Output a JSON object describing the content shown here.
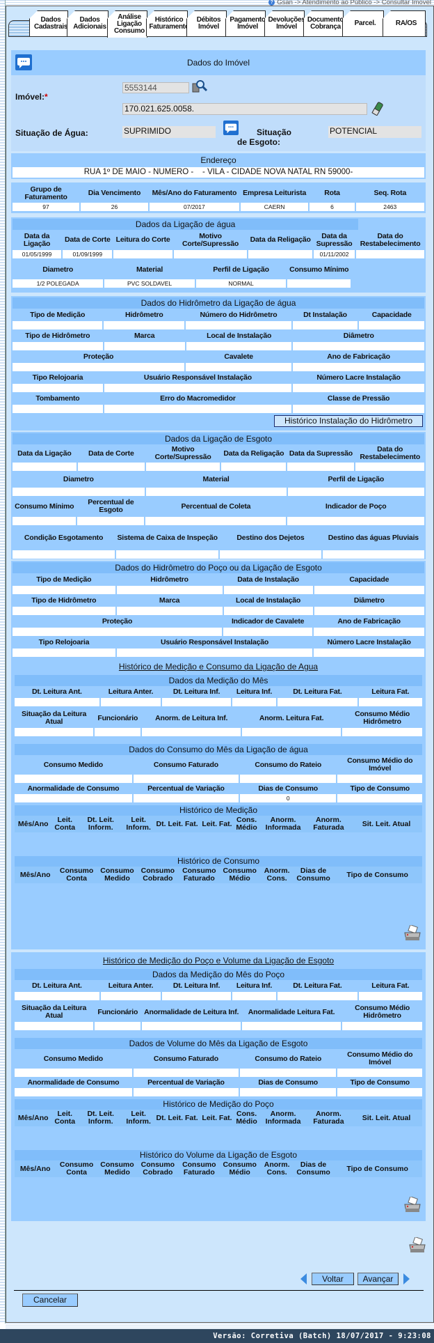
{
  "breadcrumb": "Gsan -> Atendimento ao Público -> Consultar Imovel",
  "tabs": [
    "Dados Cadastrais",
    "Dados Adicionais",
    "Análise Ligação Consumo",
    "Histórico Faturamento",
    "Débitos Imóvel",
    "Pagamento Imóvel",
    "Devoluções Imóvel",
    "Documento Cobrança",
    "Parcel.",
    "RA/OS"
  ],
  "active_tab": "Análise Ligação Consumo",
  "imovel": {
    "title": "Dados do Imóvel",
    "label": "Imóvel:",
    "required": "*",
    "matricula": "5553144",
    "inscricao": "170.021.625.0058.",
    "sit_agua_label": "Situação de Água:",
    "sit_agua": "SUPRIMIDO",
    "sit_esgoto_label": "Situação de Esgoto:",
    "sit_esgoto": "POTENCIAL"
  },
  "endereco": {
    "title": "Endereço",
    "value": "RUA 1º DE MAIO - NUMERO -    - VILA - CIDADE NOVA NATAL RN 59000-"
  },
  "billing": {
    "rows": [
      {
        "labels": [
          "Grupo de Faturamento",
          "Dia Vencimento",
          "Mês/Ano do Faturamento",
          "Empresa Leiturista",
          "Rota",
          "Seq. Rota"
        ],
        "values": [
          "97",
          "26",
          "07/2017",
          "CAERN",
          "6",
          "2463"
        ]
      }
    ]
  },
  "agua": {
    "title": "Dados da Ligação de água",
    "rows": [
      {
        "labels": [
          "Data da Ligação",
          "Data de Corte",
          "Leitura do Corte",
          "Motivo Corte/Supressão",
          "Data da Religação",
          "Data da Supressão",
          "Data do Restabelecimento"
        ],
        "values": [
          "01/05/1999",
          "01/09/1999",
          "",
          "",
          "",
          "01/11/2002",
          ""
        ]
      },
      {
        "labels": [
          "Diametro",
          "Material",
          "Perfil de Ligação",
          "Consumo Mínimo"
        ],
        "values": [
          "1/2 POLEGADA",
          "PVC SOLDAVEL",
          "NORMAL",
          ""
        ]
      }
    ]
  },
  "hidro": {
    "title": "Dados do Hidrômetro da Ligação de água",
    "button": "Histórico Instalação do Hidrômetro",
    "rows": [
      {
        "labels": [
          "Tipo de Medição",
          "Hidrômetro",
          "Número do Hidrômetro",
          "Dt Instalação",
          "Capacidade"
        ],
        "values": [
          "",
          "",
          "",
          "",
          ""
        ]
      },
      {
        "labels": [
          "Tipo de Hidrômetro",
          "Marca",
          "Local de Instalação",
          "Diâmetro"
        ],
        "values": [
          "",
          "",
          "",
          ""
        ]
      },
      {
        "labels": [
          "Proteção",
          "Cavalete",
          "Ano de Fabricação"
        ],
        "values": [
          "",
          "",
          ""
        ]
      },
      {
        "labels": [
          "Tipo Relojoaria",
          "Usuário Responsável Instalação",
          "Número Lacre Instalação"
        ],
        "values": [
          "",
          "",
          ""
        ]
      },
      {
        "labels": [
          "Tombamento",
          "Erro do Macromedidor",
          "Classe de Pressão"
        ],
        "values": [
          "",
          "",
          ""
        ]
      }
    ]
  },
  "esgoto": {
    "title": "Dados da Ligação de Esgoto",
    "rows": [
      {
        "labels": [
          "Data da Ligação",
          "Data de Corte",
          "Motivo Corte/Supressão",
          "Data da Religação",
          "Data da Supressão",
          "Data do Restabelecimento"
        ],
        "values": [
          "",
          "",
          "",
          "",
          "",
          ""
        ]
      },
      {
        "labels": [
          "Diametro",
          "Material",
          "Perfil de Ligação"
        ],
        "values": [
          "",
          "",
          ""
        ]
      },
      {
        "labels": [
          "Consumo Mínimo",
          "Percentual de Esgoto",
          "Percentual de Coleta",
          "Indicador de Poço"
        ],
        "values": [
          "",
          "",
          "",
          ""
        ]
      },
      {
        "labels": [
          "Condição Esgotamento",
          "Sistema de Caixa de Inspeção",
          "Destino dos Dejetos",
          "Destino das águas Pluviais"
        ],
        "values": [
          "",
          "",
          "",
          ""
        ]
      }
    ]
  },
  "poco": {
    "title": "Dados do Hidrômetro do Poço ou da Ligação de Esgoto",
    "rows": [
      {
        "labels": [
          "Tipo de Medição",
          "Hidrômetro",
          "Data de Instalação",
          "Capacidade"
        ],
        "values": [
          "",
          "",
          "",
          ""
        ]
      },
      {
        "labels": [
          "Tipo de Hidrômetro",
          "Marca",
          "Local de Instalação",
          "Diâmetro"
        ],
        "values": [
          "",
          "",
          "",
          ""
        ]
      },
      {
        "labels": [
          "Proteção",
          "Indicador de Cavalete",
          "Ano de Fabricação"
        ],
        "values": [
          "",
          "",
          ""
        ]
      },
      {
        "labels": [
          "Tipo Relojoaria",
          "Usuário Responsável Instalação",
          "Número Lacre Instalação"
        ],
        "values": [
          "",
          "",
          ""
        ]
      }
    ]
  },
  "hist_agua": {
    "title": "Histórico de Medição e Consumo da Ligação de Agua",
    "medicao": {
      "title": "Dados da Medição do Mês",
      "rows": [
        {
          "labels": [
            "Dt. Leitura Ant.",
            "Leitura Anter.",
            "Dt. Leitura Inf.",
            "Leitura Inf.",
            "Dt. Leitura Fat.",
            "Leitura Fat."
          ],
          "values": [
            "",
            "",
            "",
            "",
            "",
            ""
          ]
        },
        {
          "labels": [
            "Situação da Leitura Atual",
            "Funcionário",
            "Anorm. de Leitura Inf.",
            "Anorm. Leitura Fat.",
            "Consumo Médio Hidrômetro"
          ],
          "values": [
            "",
            "",
            "",
            "",
            ""
          ]
        }
      ]
    },
    "consumo": {
      "title": "Dados do Consumo do Mês da Ligação de água",
      "rows": [
        {
          "labels": [
            "Consumo Medido",
            "Consumo Faturado",
            "Consumo do Rateio",
            "Consumo Médio do Imóvel"
          ],
          "values": [
            "",
            "",
            "",
            ""
          ]
        },
        {
          "labels": [
            "Anormalidade de Consumo",
            "Percentual de Variação",
            "Dias de Consumo",
            "Tipo de Consumo"
          ],
          "values": [
            "",
            "",
            "0",
            ""
          ]
        }
      ]
    },
    "hist_medicao": {
      "title": "Histórico de Medição",
      "columns": [
        "Mês/Ano",
        "Leit. Conta",
        "Dt. Leit. Inform.",
        "Leit. Inform.",
        "Dt. Leit. Fat.",
        "Leit. Fat.",
        "Cons. Médio",
        "Anorm. Informada",
        "Anorm. Faturada",
        "Sit. Leit. Atual"
      ]
    },
    "hist_consumo": {
      "title": "Histórico de Consumo",
      "columns": [
        "Mês/Ano",
        "Consumo Conta",
        "Consumo Medido",
        "Consumo Cobrado",
        "Consumo Faturado",
        "Consumo Médio",
        "Anorm. Cons.",
        "Dias de Consumo",
        "Tipo de Consumo"
      ]
    }
  },
  "hist_poco": {
    "title": "Histórico de Medição do Poço e Volume da Ligação de Esgoto",
    "medicao": {
      "title": "Dados da Medição do Mês do Poço",
      "rows": [
        {
          "labels": [
            "Dt. Leitura Ant.",
            "Leitura Anter.",
            "Dt. Leitura Inf.",
            "Leitura Inf.",
            "Dt. Leitura Fat.",
            "Leitura Fat."
          ],
          "values": [
            "",
            "",
            "",
            "",
            "",
            ""
          ]
        },
        {
          "labels": [
            "Situação da Leitura Atual",
            "Funcionário",
            "Anormalidade de Leitura Inf.",
            "Anormalidade Leitura Fat.",
            "Consumo Médio Hidrômetro"
          ],
          "values": [
            "",
            "",
            "",
            "",
            ""
          ]
        }
      ]
    },
    "consumo": {
      "title": "Dados de Volume do Mês da Ligação de Esgoto",
      "rows": [
        {
          "labels": [
            "Consumo Medido",
            "Consumo Faturado",
            "Consumo do Rateio",
            "Consumo Médio do Imóvel"
          ],
          "values": [
            "",
            "",
            "",
            ""
          ]
        },
        {
          "labels": [
            "Anormalidade de Consumo",
            "Percentual de Variação",
            "Dias de Consumo",
            "Tipo de Consumo"
          ],
          "values": [
            "",
            "",
            "",
            ""
          ]
        }
      ]
    },
    "hist_medicao": {
      "title": "Histórico de Medição do Poço",
      "columns": [
        "Mês/Ano",
        "Leit. Conta",
        "Dt. Leit. Inform.",
        "Leit. Inform.",
        "Dt. Leit. Fat.",
        "Leit. Fat.",
        "Cons. Médio",
        "Anorm. Informada",
        "Anorm. Faturada",
        "Sit. Leit. Atual"
      ]
    },
    "hist_consumo": {
      "title": "Histórico do Volume da Ligação de Esgoto",
      "columns": [
        "Mês/Ano",
        "Consumo Conta",
        "Consumo Medido",
        "Consumo Cobrado",
        "Consumo Faturado",
        "Consumo Médio",
        "Anorm. Cons.",
        "Dias de Consumo",
        "Tipo de Consumo"
      ]
    }
  },
  "nav": {
    "voltar": "Voltar",
    "avancar": "Avançar",
    "cancelar": "Cancelar"
  },
  "footer": "Versão: Corretiva (Batch) 18/07/2017 - 9:23:08",
  "colors": {
    "panel": "#cde6fc",
    "section": "#99ccff",
    "header": "#80bdfa",
    "footer": "#2e465e"
  }
}
